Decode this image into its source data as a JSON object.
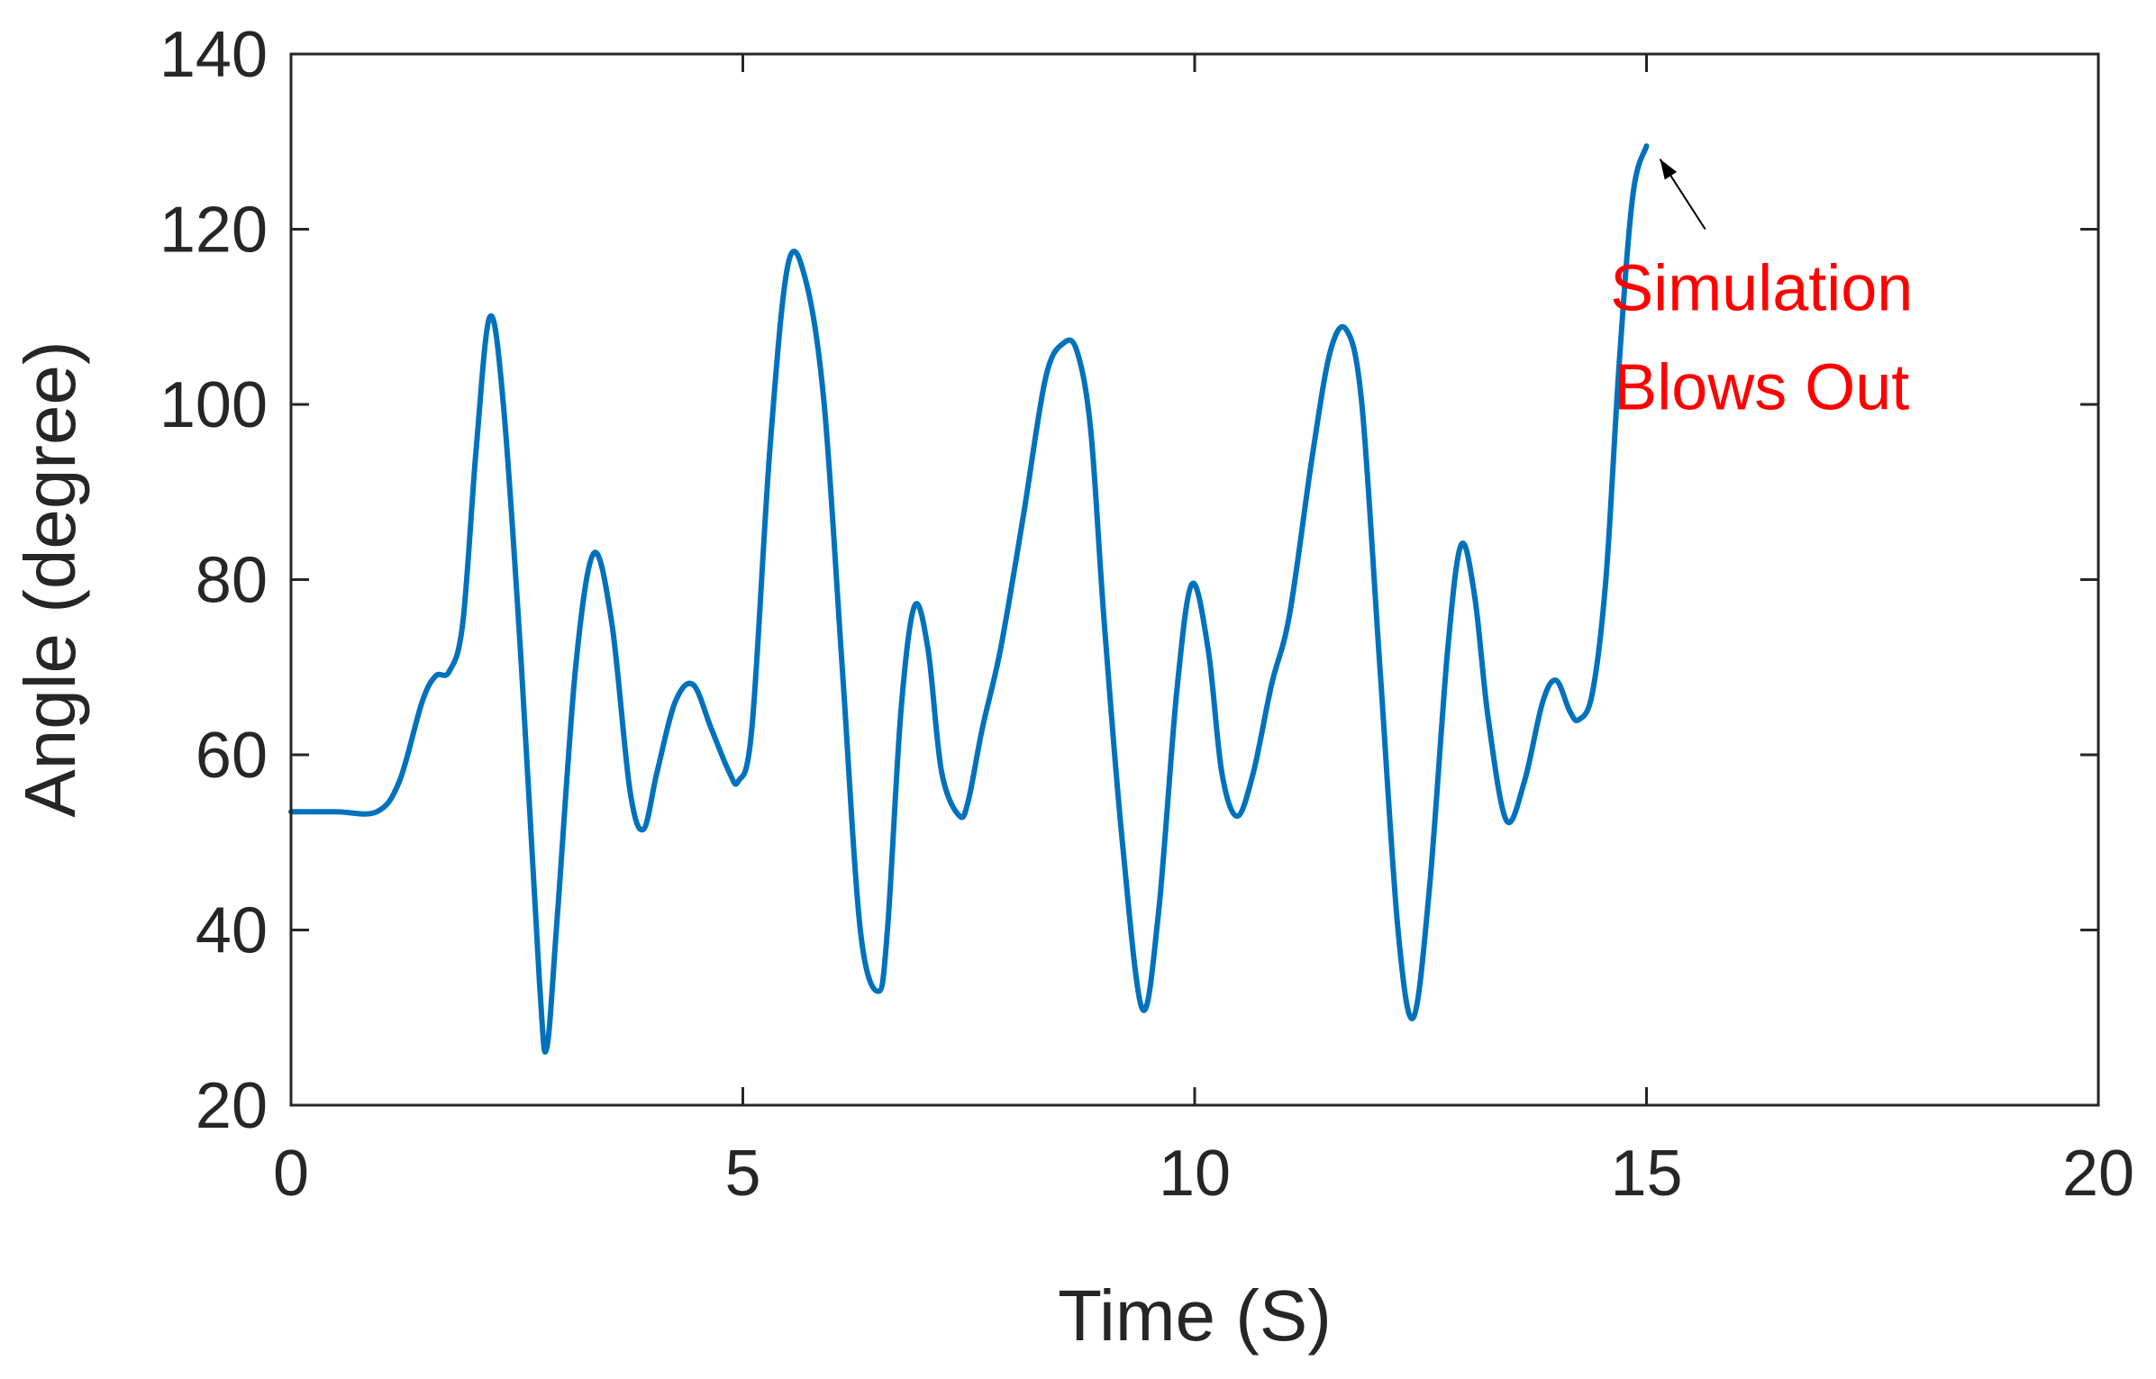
{
  "chart_data": {
    "type": "line",
    "title": "",
    "xlabel": "Time (S)",
    "ylabel": "Angle (degree)",
    "xlim": [
      0,
      20
    ],
    "ylim": [
      20,
      140
    ],
    "xticks": [
      0,
      5,
      10,
      15,
      20
    ],
    "yticks": [
      20,
      40,
      60,
      80,
      100,
      120,
      140
    ],
    "xtick_labels": [
      "0",
      "5",
      "10",
      "15",
      "20"
    ],
    "ytick_labels": [
      "20",
      "40",
      "60",
      "80",
      "100",
      "120",
      "140"
    ],
    "grid": false,
    "box": true,
    "series": [
      {
        "color": "#0072BD",
        "x": [
          0,
          0.5,
          0.95,
          1.2,
          1.45,
          1.6,
          1.75,
          1.9,
          2.05,
          2.2,
          2.35,
          2.55,
          2.75,
          2.83,
          2.95,
          3.15,
          3.35,
          3.55,
          3.75,
          3.9,
          4.05,
          4.25,
          4.45,
          4.65,
          4.85,
          4.95,
          5.1,
          5.3,
          5.5,
          5.7,
          5.9,
          6.1,
          6.3,
          6.5,
          6.6,
          6.75,
          6.9,
          7.05,
          7.2,
          7.4,
          7.5,
          7.65,
          7.85,
          8.1,
          8.35,
          8.55,
          8.7,
          8.85,
          9.0,
          9.2,
          9.42,
          9.6,
          9.8,
          9.97,
          10.15,
          10.3,
          10.47,
          10.65,
          10.85,
          11.05,
          11.3,
          11.5,
          11.68,
          11.85,
          12.05,
          12.25,
          12.42,
          12.6,
          12.8,
          12.95,
          13.1,
          13.25,
          13.45,
          13.65,
          13.85,
          14.0,
          14.15,
          14.25,
          14.4,
          14.55,
          14.7,
          14.85,
          15.0
        ],
        "y": [
          53.5,
          53.5,
          53.5,
          57,
          66,
          69,
          69.5,
          75,
          95,
          110,
          100,
          70,
          34,
          26.5,
          42,
          70,
          83,
          75,
          56,
          51.5,
          58,
          66,
          68,
          63,
          58,
          57,
          63,
          95,
          116,
          114,
          100,
          70,
          40,
          33,
          40,
          65,
          77,
          72,
          58,
          53,
          55,
          63,
          72,
          87,
          103,
          107,
          106,
          97,
          75,
          50,
          31,
          42,
          67,
          79.5,
          72,
          58,
          53,
          58,
          68,
          76,
          94,
          106,
          108.5,
          100,
          70,
          40,
          30,
          45,
          72,
          84,
          78,
          64,
          52.5,
          57,
          66,
          68.5,
          65,
          64,
          67,
          80,
          105,
          124,
          129.5
        ]
      }
    ],
    "annotations": [
      {
        "lines": [
          "Simulation",
          "Blows Out"
        ],
        "color": "#ff0000",
        "arrow_to": [
          15.15,
          128
        ],
        "arrow_from": [
          15.65,
          120
        ]
      }
    ]
  }
}
